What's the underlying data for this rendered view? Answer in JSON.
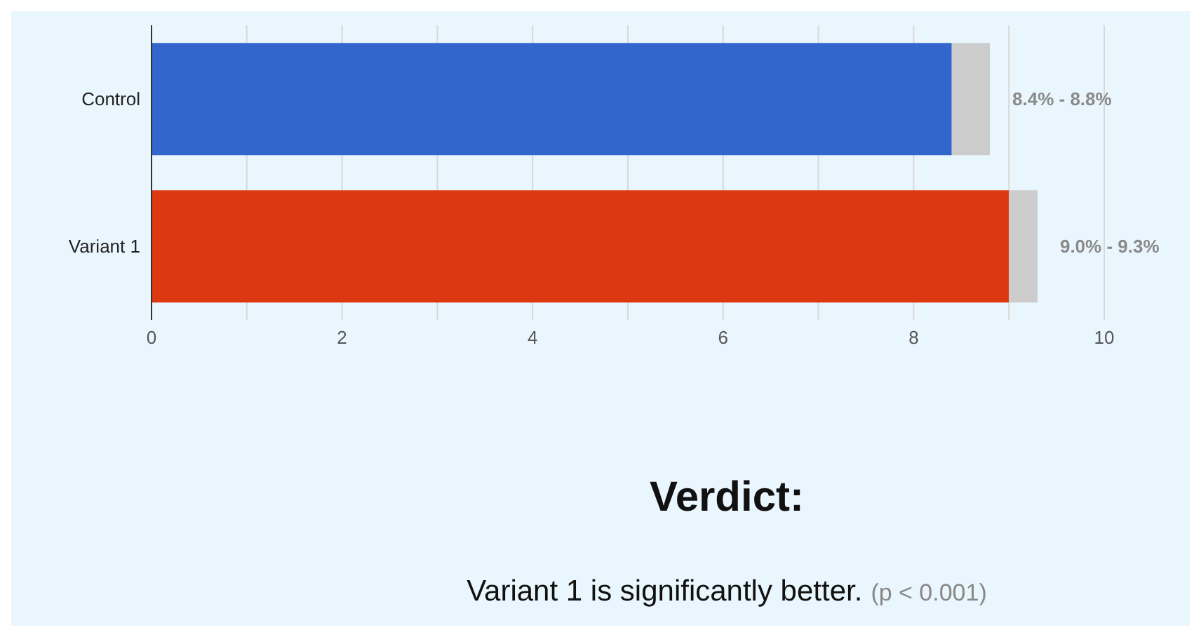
{
  "chart_data": {
    "type": "bar",
    "orientation": "horizontal",
    "stacked": true,
    "categories": [
      "Control",
      "Variant 1"
    ],
    "series": [
      {
        "colors": [
          "#3366cc",
          "#dc3912"
        ],
        "values": [
          8.4,
          9.0
        ]
      },
      {
        "color": "#cccccc",
        "values": [
          0.4,
          0.3
        ]
      }
    ],
    "xlim": [
      0,
      10
    ],
    "xticks": [
      0,
      {
        "value": 1,
        "label": null
      },
      2,
      {
        "value": 3,
        "label": null
      },
      4,
      {
        "value": 5,
        "label": null
      },
      6,
      {
        "value": 7,
        "label": null
      },
      8,
      {
        "value": 9,
        "label": null
      },
      10
    ],
    "grid": "x",
    "legend": false,
    "annotations": [
      {
        "text": "8.4% - 8.8%",
        "x": 8.8,
        "y": "Control"
      },
      {
        "text": "9.0% - 9.3%",
        "x": 9.3,
        "y": "Variant 1"
      },
      "Verdict:",
      "Variant 1 is significantly better.",
      "(p < 0.001)"
    ]
  }
}
